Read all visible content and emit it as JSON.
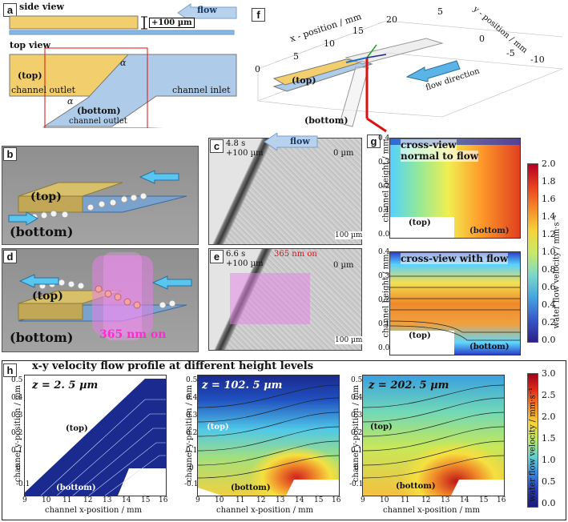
{
  "panel_letters": {
    "a": "a",
    "b": "b",
    "c": "c",
    "d": "d",
    "e": "e",
    "f": "f",
    "g": "g",
    "h": "h"
  },
  "panel_a": {
    "side_view": "side view",
    "top_view": "top view",
    "flow": "flow",
    "height": "+100 µm",
    "top": "(top)",
    "bottom": "(bottom)",
    "channel_outlet_top": "channel outlet",
    "channel_outlet_bottom": "channel outlet",
    "channel_inlet": "channel inlet",
    "alpha": "α"
  },
  "panel_b": {
    "top": "(top)",
    "bottom": "(bottom)"
  },
  "panel_c": {
    "time": "4.8 s",
    "height": "+100 µm",
    "flow": "flow",
    "zero": "0 µm",
    "scale": "100 µm"
  },
  "panel_d": {
    "top": "(top)",
    "bottom": "(bottom)",
    "uv": "365 nm on"
  },
  "panel_e": {
    "time": "6.6 s",
    "height": "+100 µm",
    "uv": "365 nm on",
    "zero": "0 µm",
    "scale": "100 µm"
  },
  "panel_f": {
    "x_axis": "x - position / mm",
    "y_axis": "y - position / mm",
    "x_ticks": [
      "0",
      "5",
      "10",
      "15",
      "20"
    ],
    "y_ticks": [
      "5",
      "0",
      "-5",
      "-10"
    ],
    "top": "(top)",
    "bottom": "(bottom)",
    "flow_direction": "flow direction"
  },
  "panel_g": {
    "title1a": "cross-view",
    "title1b": "normal to flow",
    "title2": "cross-view with flow",
    "ylabel": "channel height / mm",
    "yticks": [
      "0.4",
      "0.3",
      "0.2",
      "0.1",
      "0.0"
    ],
    "top": "(top)",
    "bottom": "(bottom)",
    "colorbar_label": "water flow velocity / mm·s⁻¹",
    "colorbar_ticks": [
      "2.0",
      "1.8",
      "1.6",
      "1.4",
      "1.2",
      "1.0",
      "0.8",
      "0.6",
      "0.4",
      "0.2",
      "0.0"
    ]
  },
  "panel_h": {
    "title": "x-y velocity flow profile at different height levels",
    "z_labels": [
      "z = 2. 5 µm",
      "z = 102. 5 µm",
      "z = 202. 5 µm"
    ],
    "xlabel": "channel x-position / mm",
    "ylabel": "channel y-position / mm",
    "xticks": [
      "9",
      "10",
      "11",
      "12",
      "13",
      "14",
      "15",
      "16"
    ],
    "yticks": [
      "0.5",
      "0.4",
      "0.3",
      "0.2",
      "0.1",
      "0",
      "-0.1"
    ],
    "top": "(top)",
    "bottom": "(bottom)",
    "colorbar_label": "water flow velocity / mm·s⁻¹",
    "colorbar_ticks": [
      "3.0",
      "2.5",
      "2.0",
      "1.5",
      "1.0",
      "0.5",
      "0.0"
    ]
  },
  "colors": {
    "yellow": "#f2cf6c",
    "blue": "#aeccea",
    "red": "#d11",
    "uv": "#ff00cc"
  }
}
